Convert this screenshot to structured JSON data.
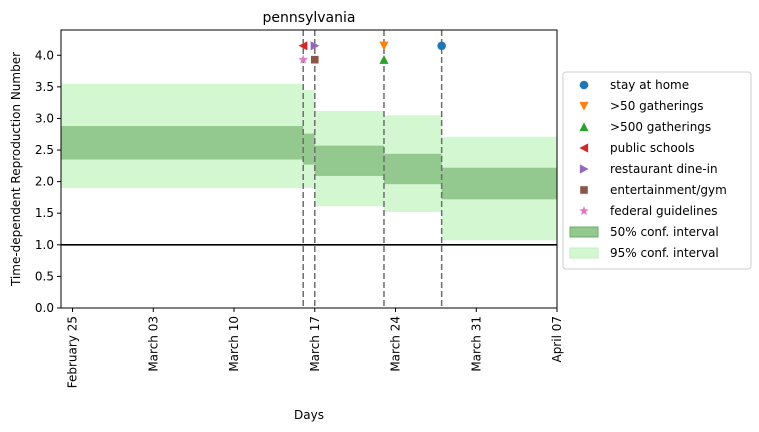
{
  "chart_data": {
    "type": "area",
    "title": "pennsylvania",
    "xlabel": "Days",
    "ylabel": "Time-dependent Reproduction Number",
    "x_range": [
      "2020-02-24",
      "2020-04-07"
    ],
    "ylim": [
      0,
      4.4
    ],
    "x_ticks": [
      {
        "date": "2020-02-25",
        "label": "February 25"
      },
      {
        "date": "2020-03-03",
        "label": "March 03"
      },
      {
        "date": "2020-03-10",
        "label": "March 10"
      },
      {
        "date": "2020-03-17",
        "label": "March 17"
      },
      {
        "date": "2020-03-24",
        "label": "March 24"
      },
      {
        "date": "2020-03-31",
        "label": "March 31"
      },
      {
        "date": "2020-04-07",
        "label": "April 07"
      }
    ],
    "y_ticks": [
      0.0,
      0.5,
      1.0,
      1.5,
      2.0,
      2.5,
      3.0,
      3.5,
      4.0
    ],
    "y_tick_labels": [
      "0.0",
      "0.5",
      "1.0",
      "1.5",
      "2.0",
      "2.5",
      "3.0",
      "3.5",
      "4.0"
    ],
    "reference_line": 1.0,
    "segments": [
      {
        "start": "2020-02-24",
        "end": "2020-03-16",
        "ci50": [
          2.35,
          2.88
        ],
        "ci95": [
          1.9,
          3.55
        ]
      },
      {
        "start": "2020-03-16",
        "end": "2020-03-17",
        "ci50": [
          2.27,
          2.76
        ],
        "ci95": [
          1.9,
          3.45
        ]
      },
      {
        "start": "2020-03-17",
        "end": "2020-03-23",
        "ci50": [
          2.09,
          2.57
        ],
        "ci95": [
          1.61,
          3.12
        ]
      },
      {
        "start": "2020-03-23",
        "end": "2020-03-28",
        "ci50": [
          1.96,
          2.44
        ],
        "ci95": [
          1.52,
          3.05
        ]
      },
      {
        "start": "2020-03-28",
        "end": "2020-04-07",
        "ci50": [
          1.72,
          2.22
        ],
        "ci95": [
          1.07,
          2.71
        ]
      }
    ],
    "interventions": [
      {
        "name": "stay at home",
        "date": "2020-03-28",
        "y": 4.15,
        "marker": "circle",
        "color": "#1f77b4"
      },
      {
        "name": ">50 gatherings",
        "date": "2020-03-23",
        "y": 4.15,
        "marker": "triangle-down",
        "color": "#ff7f0e"
      },
      {
        "name": ">500 gatherings",
        "date": "2020-03-23",
        "y": 3.93,
        "marker": "triangle-up",
        "color": "#2ca02c"
      },
      {
        "name": "public schools",
        "date": "2020-03-16",
        "y": 4.15,
        "marker": "triangle-left",
        "color": "#d62728"
      },
      {
        "name": "restaurant dine-in",
        "date": "2020-03-17",
        "y": 4.15,
        "marker": "triangle-right",
        "color": "#9467bd"
      },
      {
        "name": "entertainment/gym",
        "date": "2020-03-17",
        "y": 3.93,
        "marker": "square",
        "color": "#8c564b"
      },
      {
        "name": "federal guidelines",
        "date": "2020-03-16",
        "y": 3.93,
        "marker": "star",
        "color": "#e377c2"
      }
    ],
    "vlines": [
      "2020-03-16",
      "2020-03-17",
      "2020-03-23",
      "2020-03-28"
    ],
    "legend": {
      "placement": "right",
      "entries": [
        {
          "label": "stay at home",
          "kind": "marker",
          "ref": 0
        },
        {
          "label": ">50 gatherings",
          "kind": "marker",
          "ref": 1
        },
        {
          "label": ">500 gatherings",
          "kind": "marker",
          "ref": 2
        },
        {
          "label": "public schools",
          "kind": "marker",
          "ref": 3
        },
        {
          "label": "restaurant dine-in",
          "kind": "marker",
          "ref": 4
        },
        {
          "label": "entertainment/gym",
          "kind": "marker",
          "ref": 5
        },
        {
          "label": "federal guidelines",
          "kind": "marker",
          "ref": 6
        },
        {
          "label": "50% conf. interval",
          "kind": "patch",
          "color": "#93c98e",
          "edge": "#6aac66"
        },
        {
          "label": "95% conf. interval",
          "kind": "patch",
          "color": "#d3f7d0",
          "edge": "#bff0bb"
        }
      ]
    },
    "colors": {
      "ci50": "#93c98e",
      "ci95": "#d3f7d0",
      "ci50_edge": "#7fbd79",
      "vline": "#6e6e6e",
      "refline": "#000000"
    }
  }
}
